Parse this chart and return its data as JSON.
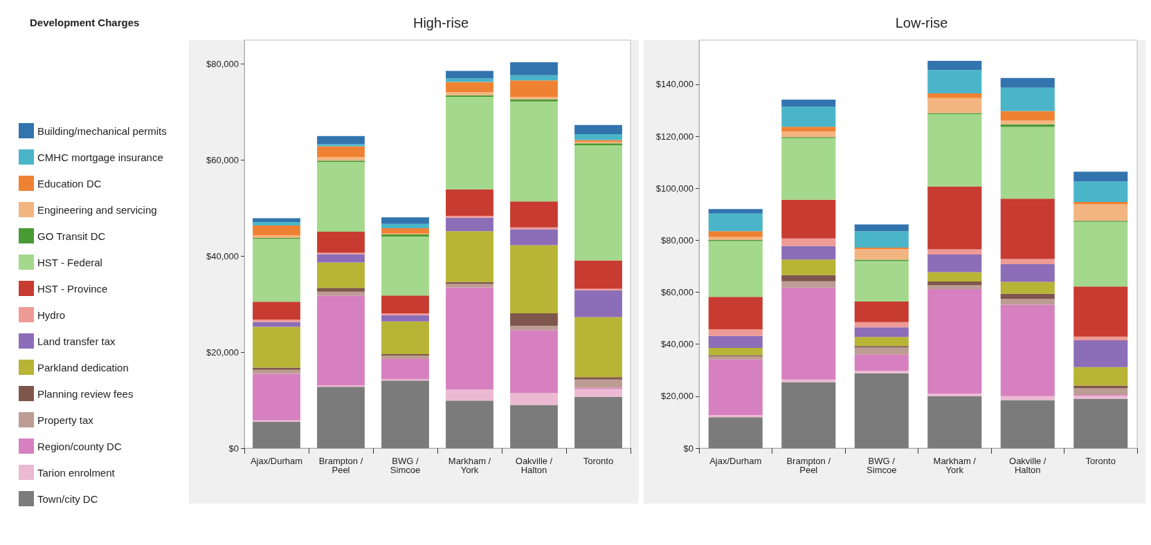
{
  "chart_data": [
    {
      "type": "bar",
      "title": "High-rise",
      "legend_title": "Development Charges",
      "legend": "left",
      "stacked": true,
      "grid": false,
      "categories": [
        "Ajax/Durham",
        "Brampton /Peel",
        "BWG /Simcoe",
        "Markham /York",
        "Oakville /Halton",
        "Toronto"
      ],
      "ylim": [
        0,
        85000
      ],
      "yticks": [
        {
          "value": 0,
          "label": "$0"
        },
        {
          "value": 20000,
          "label": "$20,000"
        },
        {
          "value": 40000,
          "label": "$40,000"
        },
        {
          "value": 60000,
          "label": "$60,000"
        },
        {
          "value": 80000,
          "label": "$80,000"
        }
      ],
      "series": [
        {
          "name": "Town/city DC",
          "color": "#7b7b7b",
          "values": [
            5500,
            12800,
            14100,
            9900,
            9000,
            10700
          ]
        },
        {
          "name": "Tarion enrolment",
          "color": "#ecb9d2",
          "values": [
            300,
            300,
            300,
            2300,
            2500,
            1600
          ]
        },
        {
          "name": "Region/county DC",
          "color": "#d680c0",
          "values": [
            9700,
            18700,
            4200,
            21300,
            13100,
            300
          ]
        },
        {
          "name": "Property tax",
          "color": "#bd9c93",
          "values": [
            800,
            800,
            700,
            700,
            900,
            1700
          ]
        },
        {
          "name": "Planning review fees",
          "color": "#7f564b",
          "values": [
            500,
            800,
            300,
            400,
            2600,
            500
          ]
        },
        {
          "name": "Parkland dedication",
          "color": "#b8b435",
          "values": [
            8500,
            5300,
            6800,
            10600,
            14200,
            12500
          ]
        },
        {
          "name": "Land transfer tax",
          "color": "#8c6db8",
          "values": [
            1000,
            1700,
            1300,
            2800,
            3300,
            5600
          ]
        },
        {
          "name": "Hydro",
          "color": "#ee9a95",
          "values": [
            500,
            300,
            400,
            400,
            400,
            300
          ]
        },
        {
          "name": "HST - Province",
          "color": "#c73b31",
          "values": [
            3700,
            4400,
            3700,
            5500,
            5400,
            5900
          ]
        },
        {
          "name": "HST - Federal",
          "color": "#a4d88c",
          "values": [
            13100,
            14500,
            12300,
            19300,
            20800,
            24000
          ]
        },
        {
          "name": "GO Transit DC",
          "color": "#4a9a34",
          "values": [
            200,
            300,
            400,
            300,
            500,
            400
          ]
        },
        {
          "name": "Engineering and servicing",
          "color": "#f2b581",
          "values": [
            500,
            700,
            200,
            700,
            500,
            300
          ]
        },
        {
          "name": "Education DC",
          "color": "#ef8232",
          "values": [
            2100,
            2300,
            1100,
            2100,
            3400,
            400
          ]
        },
        {
          "name": "CMHC mortgage insurance",
          "color": "#4ab5c8",
          "values": [
            700,
            400,
            900,
            700,
            1100,
            1200
          ]
        },
        {
          "name": "Building/mechanical permits",
          "color": "#3274ae",
          "values": [
            800,
            1700,
            1400,
            1600,
            2700,
            1900
          ]
        }
      ]
    },
    {
      "type": "bar",
      "title": "Low-rise",
      "legend": false,
      "stacked": true,
      "grid": false,
      "categories": [
        "Ajax/Durham",
        "Brampton /Peel",
        "BWG /Simcoe",
        "Markham /York",
        "Oakville /Halton",
        "Toronto"
      ],
      "ylim": [
        0,
        157000
      ],
      "yticks": [
        {
          "value": 0,
          "label": "$0"
        },
        {
          "value": 20000,
          "label": "$20,000"
        },
        {
          "value": 40000,
          "label": "$40,000"
        },
        {
          "value": 60000,
          "label": "$60,000"
        },
        {
          "value": 80000,
          "label": "$80,000"
        },
        {
          "value": 100000,
          "label": "$100,000"
        },
        {
          "value": 120000,
          "label": "$120,000"
        },
        {
          "value": 140000,
          "label": "$140,000"
        }
      ],
      "series": [
        {
          "color": "#7b7b7b",
          "values": [
            11900,
            25400,
            28800,
            20000,
            18500,
            19000
          ]
        },
        {
          "color": "#ecb9d2",
          "values": [
            800,
            1000,
            1000,
            1000,
            1500,
            1200
          ]
        },
        {
          "color": "#d680c0",
          "values": [
            21400,
            35400,
            6200,
            40200,
            35200,
            300
          ]
        },
        {
          "color": "#bd9c93",
          "values": [
            1300,
            2400,
            2700,
            1500,
            2300,
            2500
          ]
        },
        {
          "color": "#7f564b",
          "values": [
            400,
            2400,
            600,
            1400,
            1900,
            1100
          ]
        },
        {
          "color": "#b8b435",
          "values": [
            2800,
            6000,
            3500,
            3600,
            4600,
            7100
          ]
        },
        {
          "color": "#8c6db8",
          "values": [
            4600,
            5200,
            3700,
            6800,
            6800,
            10300
          ]
        },
        {
          "color": "#ee9a95",
          "values": [
            2500,
            2900,
            2000,
            2000,
            2000,
            1400
          ]
        },
        {
          "color": "#c73b31",
          "values": [
            12500,
            14900,
            7900,
            24200,
            23200,
            19300
          ]
        },
        {
          "color": "#a4d88c",
          "values": [
            21500,
            23700,
            15600,
            27800,
            27600,
            24900
          ]
        },
        {
          "color": "#4a9a34",
          "values": [
            400,
            400,
            500,
            400,
            1000,
            400
          ]
        },
        {
          "color": "#f2b581",
          "values": [
            1100,
            2100,
            4100,
            5800,
            1500,
            6300
          ]
        },
        {
          "color": "#ef8232",
          "values": [
            2300,
            1900,
            600,
            1800,
            3600,
            900
          ]
        },
        {
          "color": "#4ab5c8",
          "values": [
            6800,
            7700,
            6200,
            9000,
            9000,
            7900
          ]
        },
        {
          "color": "#3274ae",
          "values": [
            1700,
            2700,
            2700,
            3500,
            3700,
            3800
          ]
        }
      ]
    }
  ]
}
